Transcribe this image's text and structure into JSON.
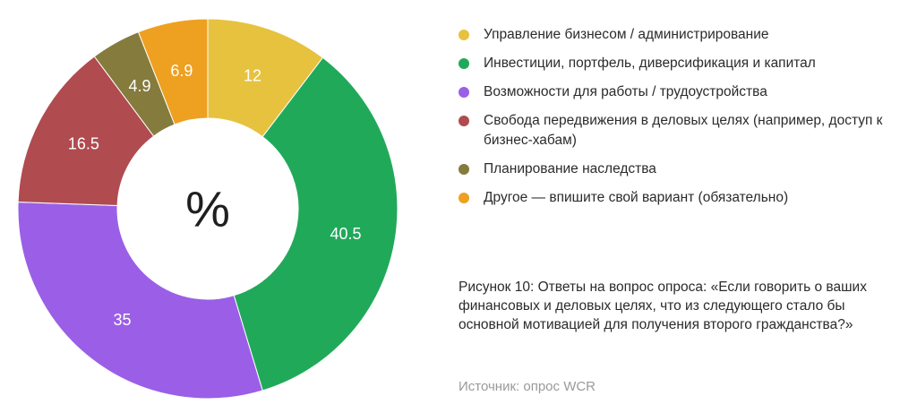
{
  "chart_data": {
    "type": "pie",
    "donut": true,
    "center_label": "%",
    "categories": [
      "Управление бизнесом / администрирование",
      "Инвестиции, портфель, диверсификация и капитал",
      "Возможности для работы / трудоустройства",
      "Свобода передвижения в деловых целях (например, доступ к бизнес-хабам)",
      "Планирование наследства",
      "Другое — впишите свой вариант (обязательно)"
    ],
    "values": [
      12,
      40.5,
      35,
      16.5,
      4.9,
      6.9
    ],
    "value_labels": [
      "12",
      "40.5",
      "35",
      "16.5",
      "4.9",
      "6.9"
    ],
    "colors": [
      "#E7C23F",
      "#21A95A",
      "#9A5FE6",
      "#B04B4F",
      "#857B3D",
      "#EEA021"
    ],
    "legend_position": "right"
  },
  "legend": {
    "items": [
      {
        "label": "Управление бизнесом / администрирование",
        "color": "#E7C23F"
      },
      {
        "label": "Инвестиции, портфель, диверсификация и капитал",
        "color": "#21A95A"
      },
      {
        "label": "Возможности для работы / трудоустройства",
        "color": "#9A5FE6"
      },
      {
        "label": "Свобода передвижения в деловых целях (например, доступ к бизнес-хабам)",
        "color": "#B04B4F"
      },
      {
        "label": "Планирование наследства",
        "color": "#857B3D"
      },
      {
        "label": "Другое — впишите свой вариант (обязательно)",
        "color": "#EEA021"
      }
    ]
  },
  "caption": "Рисунок 10: Ответы на вопрос опроса: «Если говорить о ваших финансовых и деловых целях, что из следующего стало бы основной мотивацией для получения второго гражданства?»",
  "source": "Источник: опрос WCR"
}
